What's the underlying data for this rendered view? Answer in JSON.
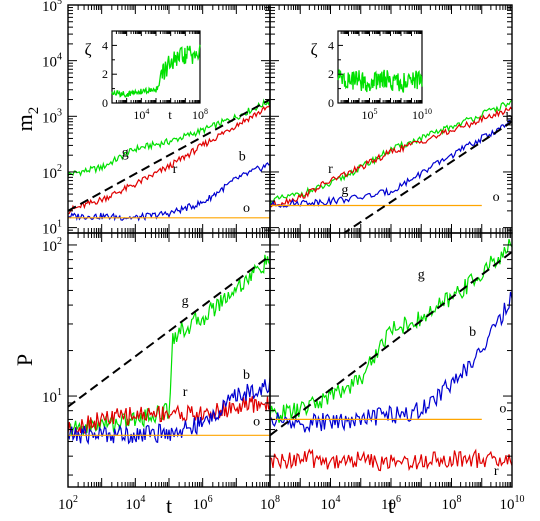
{
  "chart_data": [
    {
      "id": "m2-left",
      "type": "line",
      "xscale": "log",
      "yscale": "log",
      "xlim": [
        100,
        100000000
      ],
      "ylim": [
        8,
        100000
      ],
      "xticklabels": [],
      "yticklabels": [
        "10^1",
        "10^2",
        "10^3",
        "10^4",
        "10^5"
      ],
      "ylabel": "m_2",
      "xlabel": "",
      "series": [
        {
          "name": "g",
          "color": "#00e000",
          "x": [
            100,
            1000,
            10000,
            100000,
            1000000,
            10000000,
            100000000
          ],
          "y": [
            90,
            120,
            260,
            350,
            560,
            980,
            1900
          ]
        },
        {
          "name": "r",
          "color": "#e00000",
          "x": [
            100,
            1000,
            10000,
            100000,
            1000000,
            10000000,
            100000000
          ],
          "y": [
            20,
            32,
            60,
            125,
            300,
            700,
            1500
          ]
        },
        {
          "name": "b",
          "color": "#0000d0",
          "x": [
            100,
            1000,
            10000,
            100000,
            1000000,
            10000000,
            100000000
          ],
          "y": [
            16,
            16,
            15,
            18,
            28,
            75,
            140
          ]
        },
        {
          "name": "o",
          "color": "#ffa500",
          "x": [
            100,
            1000,
            10000,
            100000,
            1000000,
            10000000,
            100000000
          ],
          "y": [
            15,
            15,
            15,
            15,
            15,
            15,
            15
          ]
        }
      ],
      "fit": {
        "x": [
          100,
          100000000
        ],
        "y": [
          20,
          2000
        ]
      },
      "inset": {
        "ylabel": "ζ",
        "xlabel": "t",
        "xticklabels": [
          "10^4",
          "10^8"
        ],
        "yticklabels": [
          "0",
          "2",
          "4"
        ],
        "xlim": [
          100,
          100000000
        ],
        "ylim": [
          0,
          5
        ],
        "x": [
          100,
          1000,
          10000,
          100000,
          300000,
          1000000,
          10000000,
          100000000
        ],
        "y": [
          0.7,
          0.6,
          0.8,
          0.9,
          2.0,
          2.8,
          3.3,
          3.4
        ]
      },
      "labels": [
        {
          "text": "g",
          "x": 5000,
          "y": 190
        },
        {
          "text": "r",
          "x": 150000,
          "y": 95
        },
        {
          "text": "b",
          "x": 15000000,
          "y": 160
        },
        {
          "text": "o",
          "x": 20000000,
          "y": 19
        }
      ]
    },
    {
      "id": "m2-right",
      "type": "line",
      "xscale": "log",
      "yscale": "log",
      "xlim": [
        100,
        10000000000
      ],
      "ylim": [
        8,
        100000
      ],
      "xticklabels": [],
      "yticklabels": [],
      "series": [
        {
          "name": "g",
          "color": "#00e000",
          "x": [
            100,
            1000,
            10000,
            100000,
            1000000,
            100000000,
            10000000000
          ],
          "y": [
            30,
            40,
            60,
            120,
            250,
            650,
            1800
          ]
        },
        {
          "name": "r",
          "color": "#e00000",
          "x": [
            100,
            1000,
            10000,
            100000,
            1000000,
            100000000,
            10000000000
          ],
          "y": [
            25,
            35,
            70,
            120,
            230,
            550,
            1400
          ]
        },
        {
          "name": "b",
          "color": "#0000d0",
          "x": [
            100,
            1000,
            10000,
            100000,
            1000000,
            100000000,
            10000000000
          ],
          "y": [
            25,
            28,
            30,
            35,
            45,
            200,
            800
          ]
        },
        {
          "name": "o",
          "color": "#ffa500",
          "x": [
            100,
            1000000000
          ],
          "y": [
            25,
            25
          ]
        }
      ],
      "fit": {
        "x": [
          10000,
          10000000000
        ],
        "y": [
          5.5,
          800
        ]
      },
      "inset": {
        "ylabel": "ζ",
        "xlabel": "",
        "xticklabels": [
          "10^5",
          "10^10"
        ],
        "yticklabels": [
          "0",
          "2",
          "4"
        ],
        "xlim": [
          100,
          10000000000
        ],
        "ylim": [
          0,
          5
        ],
        "x": [
          100,
          1000,
          10000,
          100000,
          1000000,
          100000000,
          10000000000
        ],
        "y": [
          1.8,
          1.5,
          1.6,
          1.2,
          1.7,
          1.4,
          1.6
        ]
      },
      "labels": [
        {
          "text": "r",
          "x": 10000,
          "y": 95
        },
        {
          "text": "g",
          "x": 30000,
          "y": 40
        },
        {
          "text": "b",
          "x": 8000000000,
          "y": 800
        },
        {
          "text": "o",
          "x": 3000000000,
          "y": 30
        }
      ]
    },
    {
      "id": "P-left",
      "type": "line",
      "xscale": "log",
      "yscale": "log",
      "xlim": [
        100,
        100000000
      ],
      "ylim": [
        2.5,
        120
      ],
      "xticklabels": [
        "10^2",
        "10^4",
        "10^6",
        "10^8"
      ],
      "yticklabels": [
        "10^1",
        "10^2"
      ],
      "ylabel": "P",
      "xlabel": "t",
      "series": [
        {
          "name": "g",
          "color": "#00e000",
          "x": [
            100,
            1000,
            10000,
            100000,
            130000,
            1000000,
            10000000,
            100000000
          ],
          "y": [
            6.0,
            6.5,
            7.0,
            8.0,
            25,
            33,
            52,
            80
          ]
        },
        {
          "name": "r",
          "color": "#e00000",
          "x": [
            100,
            1000,
            10000,
            100000,
            1000000,
            10000000,
            100000000
          ],
          "y": [
            6.0,
            7.0,
            7.5,
            7.8,
            7.5,
            8.5,
            9.0
          ]
        },
        {
          "name": "b",
          "color": "#0000d0",
          "x": [
            100,
            1000,
            10000,
            100000,
            1000000,
            10000000,
            100000000
          ],
          "y": [
            5.5,
            5.6,
            5.6,
            5.7,
            6.5,
            10,
            12
          ]
        },
        {
          "name": "o",
          "color": "#ffa500",
          "x": [
            100,
            100000000
          ],
          "y": [
            5.5,
            5.5
          ]
        }
      ],
      "fit": {
        "x": [
          100,
          100000000
        ],
        "y": [
          8.5,
          85
        ]
      },
      "labels": [
        {
          "text": "g",
          "x": 300000,
          "y": 40
        },
        {
          "text": "r",
          "x": 300000,
          "y": 10
        },
        {
          "text": "b",
          "x": 20000000,
          "y": 13
        },
        {
          "text": "o",
          "x": 40000000,
          "y": 6.4
        }
      ]
    },
    {
      "id": "P-right",
      "type": "line",
      "xscale": "log",
      "yscale": "log",
      "xlim": [
        100,
        10000000000
      ],
      "ylim": [
        2.5,
        120
      ],
      "xticklabels": [
        "",
        "10^4",
        "10^6",
        "10^8",
        "10^10"
      ],
      "yticklabels": [],
      "xlabel": "t",
      "series": [
        {
          "name": "g",
          "color": "#00e000",
          "x": [
            100,
            1000,
            10000,
            100000,
            1000000,
            10000000,
            100000000,
            1000000000,
            10000000000
          ],
          "y": [
            7.5,
            8.0,
            10,
            13,
            28,
            32,
            45,
            65,
            100
          ]
        },
        {
          "name": "r",
          "color": "#e00000",
          "x": [
            100,
            1000,
            10000,
            100000,
            1000000,
            100000000,
            10000000000
          ],
          "y": [
            3.6,
            3.9,
            3.7,
            3.8,
            3.6,
            3.9,
            3.7
          ]
        },
        {
          "name": "b",
          "color": "#0000d0",
          "x": [
            100,
            1000,
            10000,
            100000,
            1000000,
            10000000,
            100000000,
            1000000000,
            10000000000
          ],
          "y": [
            7.0,
            6.5,
            6.8,
            7.0,
            7.5,
            8.0,
            12,
            20,
            45
          ]
        },
        {
          "name": "o",
          "color": "#ffa500",
          "x": [
            100,
            1000000000
          ],
          "y": [
            7.0,
            7.0
          ]
        }
      ],
      "fit": {
        "x": [
          100,
          10000000000
        ],
        "y": [
          5.5,
          90
        ]
      },
      "labels": [
        {
          "text": "g",
          "x": 10000000,
          "y": 60
        },
        {
          "text": "b",
          "x": 500000000,
          "y": 25
        },
        {
          "text": "o",
          "x": 5000000000,
          "y": 7.8
        },
        {
          "text": "r",
          "x": 3000000000,
          "y": 3.0
        }
      ]
    }
  ]
}
